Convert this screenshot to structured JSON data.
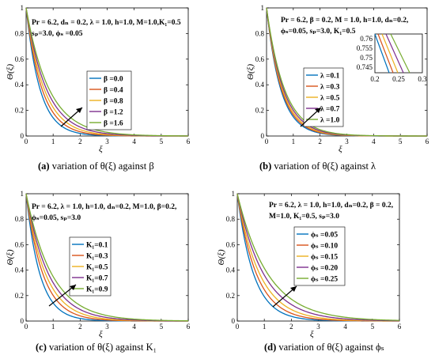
{
  "panels": [
    {
      "label": "(a)",
      "caption": "variation of θ(ξ) against β",
      "annotation": [
        "Pr = 6.2, dₙ = 0.2, λ = 1.0, h=1.0, M=1.0,K₁=0.5",
        "sₚ=3.0, ϕₛ =0.05"
      ],
      "legend": [
        "β =0.0",
        "β =0.4",
        "β =0.8",
        "β =1.2",
        "β =1.6"
      ]
    },
    {
      "label": "(b)",
      "caption": "variation of θ(ξ) against λ",
      "annotation": [
        "Pr = 6.2, β = 0.2, M = 1.0, h=1.0, dₙ=0.2,",
        "ϕₛ=0.05, sₚ=3.0, K₁=0.5"
      ],
      "legend": [
        "λ =0.1",
        "λ =0.3",
        "λ =0.5",
        "λ =0.7",
        "λ =1.0"
      ],
      "inset_yticks": [
        "0.76",
        "0.755",
        "0.75",
        "0.745"
      ],
      "inset_xticks": [
        "0.2",
        "0.25",
        "0.3"
      ]
    },
    {
      "label": "(c)",
      "caption": "variation of θ(ξ) against K₁",
      "annotation": [
        "Pr = 6.2, λ = 1.0, h=1.0, dₙ=0.2, M=1.0, β=0.2,",
        "ϕₛ=0.05, sₚ=3.0"
      ],
      "legend": [
        "K₁=0.1",
        "K₁=0.3",
        "K₁=0.5",
        "K₁=0.7",
        "K₁=0.9"
      ]
    },
    {
      "label": "(d)",
      "caption": "variation of θ(ξ) against ϕₛ",
      "annotation": [
        "Pr = 6.2, λ = 1.0, h=1.0, dₙ=0.2, β = 0.2,",
        "M=1.0, K₁=0.5, sₚ=3.0"
      ],
      "legend": [
        "ϕₛ =0.05",
        "ϕₛ =0.10",
        "ϕₛ =0.15",
        "ϕₛ =0.20",
        "ϕₛ =0.25"
      ]
    }
  ],
  "series_colors": [
    "#0072BD",
    "#D95319",
    "#EDB120",
    "#7E2F8E",
    "#77AC30"
  ],
  "chart_data": [
    {
      "type": "line",
      "xlabel": "ξ",
      "ylabel": "Θ(ξ)",
      "xlim": [
        0,
        6
      ],
      "ylim": [
        0,
        1
      ],
      "xticks": [
        0,
        1,
        2,
        3,
        4,
        5,
        6
      ],
      "yticks": [
        0,
        0.2,
        0.4,
        0.6,
        0.8,
        1
      ],
      "decay_rates": [
        1.95,
        1.7,
        1.5,
        1.33,
        1.18
      ]
    },
    {
      "type": "line",
      "xlabel": "ξ",
      "ylabel": "Θ(ξ)",
      "xlim": [
        0,
        6
      ],
      "ylim": [
        0,
        1
      ],
      "xticks": [
        0,
        1,
        2,
        3,
        4,
        5,
        6
      ],
      "yticks": [
        0,
        0.2,
        0.4,
        0.6,
        0.8,
        1
      ],
      "decay_rates": [
        1.9,
        1.8,
        1.7,
        1.6,
        1.5
      ]
    },
    {
      "type": "line",
      "xlabel": "ξ",
      "ylabel": "Θ(ξ)",
      "xlim": [
        0,
        6
      ],
      "ylim": [
        0,
        1
      ],
      "xticks": [
        0,
        1,
        2,
        3,
        4,
        5,
        6
      ],
      "yticks": [
        0,
        0.2,
        0.4,
        0.6,
        0.8,
        1
      ],
      "decay_rates": [
        1.95,
        1.6,
        1.38,
        1.2,
        1.05
      ]
    },
    {
      "type": "line",
      "xlabel": "ξ",
      "ylabel": "Θ(ξ)",
      "xlim": [
        0,
        6
      ],
      "ylim": [
        0,
        1
      ],
      "xticks": [
        0,
        1,
        2,
        3,
        4,
        5,
        6
      ],
      "yticks": [
        0,
        0.2,
        0.4,
        0.6,
        0.8,
        1
      ],
      "decay_rates": [
        1.65,
        1.4,
        1.2,
        1.02,
        0.88
      ]
    }
  ]
}
